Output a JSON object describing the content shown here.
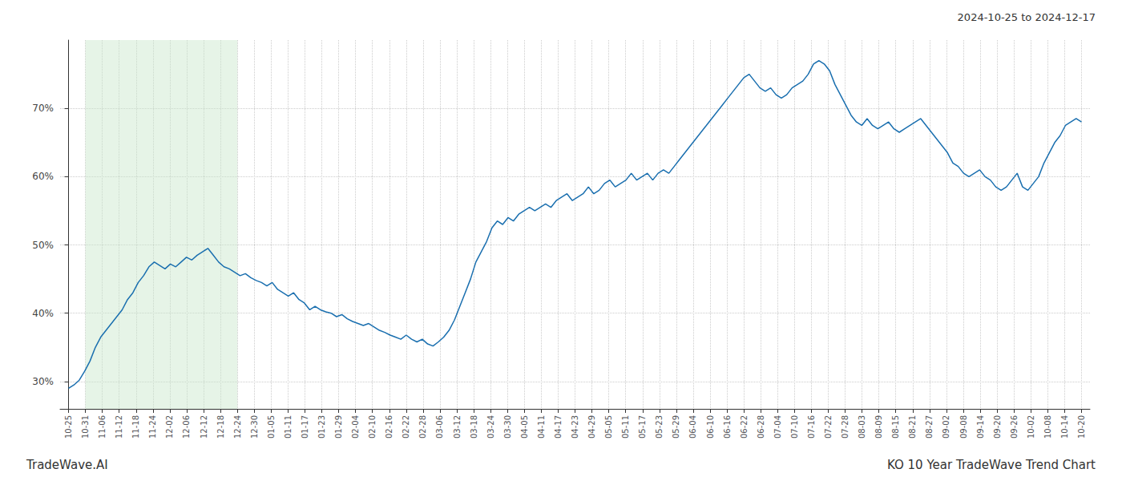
{
  "chart_data": {
    "type": "line",
    "title": "KO 10 Year TradeWave Trend Chart",
    "subtitle": "2024-10-25 to 2024-12-17",
    "annotations": [
      "TradeWave.AI"
    ],
    "color": "#1a6faf",
    "grid": true,
    "shaded_span": {
      "from": 1,
      "to": 10,
      "color": "#c8e6c9"
    },
    "xlim": [
      -0.5,
      60.5
    ],
    "xticks": [
      {
        "value": 0,
        "label": "10-25"
      },
      {
        "value": 1,
        "label": "10-31"
      },
      {
        "value": 2,
        "label": "11-06"
      },
      {
        "value": 3,
        "label": "11-12"
      },
      {
        "value": 4,
        "label": "11-18"
      },
      {
        "value": 5,
        "label": "11-24"
      },
      {
        "value": 6,
        "label": "12-02"
      },
      {
        "value": 7,
        "label": "12-06"
      },
      {
        "value": 8,
        "label": "12-12"
      },
      {
        "value": 9,
        "label": "12-18"
      },
      {
        "value": 10,
        "label": "12-24"
      },
      {
        "value": 11,
        "label": "12-30"
      },
      {
        "value": 12,
        "label": "01-05"
      },
      {
        "value": 13,
        "label": "01-11"
      },
      {
        "value": 14,
        "label": "01-17"
      },
      {
        "value": 15,
        "label": "01-23"
      },
      {
        "value": 16,
        "label": "01-29"
      },
      {
        "value": 17,
        "label": "02-04"
      },
      {
        "value": 18,
        "label": "02-10"
      },
      {
        "value": 19,
        "label": "02-16"
      },
      {
        "value": 20,
        "label": "02-22"
      },
      {
        "value": 21,
        "label": "02-28"
      },
      {
        "value": 22,
        "label": "03-06"
      },
      {
        "value": 23,
        "label": "03-12"
      },
      {
        "value": 24,
        "label": "03-18"
      },
      {
        "value": 25,
        "label": "03-24"
      },
      {
        "value": 26,
        "label": "03-30"
      },
      {
        "value": 27,
        "label": "04-05"
      },
      {
        "value": 28,
        "label": "04-11"
      },
      {
        "value": 29,
        "label": "04-17"
      },
      {
        "value": 30,
        "label": "04-23"
      },
      {
        "value": 31,
        "label": "04-29"
      },
      {
        "value": 32,
        "label": "05-05"
      },
      {
        "value": 33,
        "label": "05-11"
      },
      {
        "value": 34,
        "label": "05-17"
      },
      {
        "value": 35,
        "label": "05-23"
      },
      {
        "value": 36,
        "label": "05-29"
      },
      {
        "value": 37,
        "label": "06-04"
      },
      {
        "value": 38,
        "label": "06-10"
      },
      {
        "value": 39,
        "label": "06-16"
      },
      {
        "value": 40,
        "label": "06-22"
      },
      {
        "value": 41,
        "label": "06-28"
      },
      {
        "value": 42,
        "label": "07-04"
      },
      {
        "value": 43,
        "label": "07-10"
      },
      {
        "value": 44,
        "label": "07-16"
      },
      {
        "value": 45,
        "label": "07-22"
      },
      {
        "value": 46,
        "label": "07-28"
      },
      {
        "value": 47,
        "label": "08-03"
      },
      {
        "value": 48,
        "label": "08-09"
      },
      {
        "value": 49,
        "label": "08-15"
      },
      {
        "value": 50,
        "label": "08-21"
      },
      {
        "value": 51,
        "label": "08-27"
      },
      {
        "value": 52,
        "label": "09-02"
      },
      {
        "value": 53,
        "label": "09-08"
      },
      {
        "value": 54,
        "label": "09-14"
      },
      {
        "value": 55,
        "label": "09-20"
      },
      {
        "value": 56,
        "label": "09-26"
      },
      {
        "value": 57,
        "label": "10-02"
      },
      {
        "value": 58,
        "label": "10-08"
      },
      {
        "value": 59,
        "label": "10-14"
      },
      {
        "value": 60,
        "label": "10-20"
      }
    ],
    "ylim": [
      26,
      80
    ],
    "yticks": [
      {
        "value": 30,
        "label": "30%"
      },
      {
        "value": 40,
        "label": "40%"
      },
      {
        "value": 50,
        "label": "50%"
      },
      {
        "value": 60,
        "label": "60%"
      },
      {
        "value": 70,
        "label": "70%"
      }
    ],
    "x": [
      0,
      0.3175,
      0.6349,
      0.9524,
      1.2698,
      1.5873,
      1.9048,
      2.2222,
      2.5397,
      2.8571,
      3.1746,
      3.4921,
      3.8095,
      4.127,
      4.4444,
      4.7619,
      5.0794,
      5.3968,
      5.7143,
      6.0317,
      6.3492,
      6.6667,
      6.9841,
      7.3016,
      7.619,
      7.9365,
      8.254,
      8.5714,
      8.8889,
      9.2063,
      9.5238,
      9.8413,
      10.1587,
      10.4762,
      10.7937,
      11.1111,
      11.4286,
      11.746,
      12.0635,
      12.381,
      12.6984,
      13.0159,
      13.3333,
      13.6508,
      13.9683,
      14.2857,
      14.6032,
      14.9206,
      15.2381,
      15.5556,
      15.873,
      16.1905,
      16.5079,
      16.8254,
      17.1429,
      17.4603,
      17.7778,
      18.0952,
      18.4127,
      18.7302,
      19.0476,
      19.3651,
      19.6825,
      20,
      20.3175,
      20.6349,
      20.9524,
      21.2698,
      21.5873,
      21.9048,
      22.2222,
      22.5397,
      22.8571,
      23.1746,
      23.4921,
      23.8095,
      24.127,
      24.4444,
      24.7619,
      25.0794,
      25.3968,
      25.7143,
      26.0317,
      26.3492,
      26.6667,
      26.9841,
      27.3016,
      27.619,
      27.9365,
      28.254,
      28.5714,
      28.8889,
      29.2063,
      29.5238,
      29.8413,
      30.1587,
      30.4762,
      30.7937,
      31.1111,
      31.4286,
      31.746,
      32.0635,
      32.381,
      32.6984,
      33.0159,
      33.3333,
      33.6508,
      33.9683,
      34.2857,
      34.6032,
      34.9206,
      35.2381,
      35.5556,
      35.873,
      36.1905,
      36.5079,
      36.8254,
      37.1429,
      37.4603,
      37.7778,
      38.0952,
      38.4127,
      38.7302,
      39.0476,
      39.3651,
      39.6825,
      40,
      40.3175,
      40.6349,
      40.9524,
      41.2698,
      41.5873,
      41.9048,
      42.2222,
      42.5397,
      42.8571,
      43.1746,
      43.4921,
      43.8095,
      44.127,
      44.4444,
      44.7619,
      45.0794,
      45.3968,
      45.7143,
      46.0317,
      46.3492,
      46.6667,
      46.9841,
      47.3016,
      47.619,
      47.9365,
      48.254,
      48.5714,
      48.8889,
      49.2063,
      49.5238,
      49.8413,
      50.1587,
      50.4762,
      50.7937,
      51.1111,
      51.4286,
      51.746,
      52.0635,
      52.381,
      52.6984,
      53.0159,
      53.3333,
      53.6508,
      53.9683,
      54.2857,
      54.6032,
      54.9206,
      55.2381,
      55.5556,
      55.873,
      56.1905,
      56.5079,
      56.8254,
      57.1429,
      57.4603,
      57.7778,
      58.0952,
      58.4127,
      58.7302,
      59.0476,
      59.3651,
      59.6825,
      60
    ],
    "values": [
      29.0,
      29.5,
      30.2,
      31.5,
      33.0,
      35.0,
      36.5,
      37.5,
      38.5,
      39.5,
      40.5,
      42.0,
      43.0,
      44.5,
      45.5,
      46.8,
      47.5,
      47.0,
      46.5,
      47.2,
      46.8,
      47.5,
      48.2,
      47.8,
      48.5,
      49.0,
      49.5,
      48.5,
      47.5,
      46.8,
      46.5,
      46.0,
      45.5,
      45.8,
      45.2,
      44.8,
      44.5,
      44.0,
      44.5,
      43.5,
      43.0,
      42.5,
      43.0,
      42.0,
      41.5,
      40.5,
      41.0,
      40.5,
      40.2,
      40.0,
      39.5,
      39.8,
      39.2,
      38.8,
      38.5,
      38.2,
      38.5,
      38.0,
      37.5,
      37.2,
      36.8,
      36.5,
      36.2,
      36.8,
      36.2,
      35.8,
      36.2,
      35.5,
      35.2,
      35.8,
      36.5,
      37.5,
      39.0,
      41.0,
      43.0,
      45.0,
      47.5,
      49.0,
      50.5,
      52.5,
      53.5,
      53.0,
      54.0,
      53.5,
      54.5,
      55.0,
      55.5,
      55.0,
      55.5,
      56.0,
      55.5,
      56.5,
      57.0,
      57.5,
      56.5,
      57.0,
      57.5,
      58.5,
      57.5,
      58.0,
      59.0,
      59.5,
      58.5,
      59.0,
      59.5,
      60.5,
      59.5,
      60.0,
      60.5,
      59.5,
      60.5,
      61.0,
      60.5,
      61.5,
      62.5,
      63.5,
      64.5,
      65.5,
      66.5,
      67.5,
      68.5,
      69.5,
      70.5,
      71.5,
      72.5,
      73.5,
      74.5,
      75.0,
      74.0,
      73.0,
      72.5,
      73.0,
      72.0,
      71.5,
      72.0,
      73.0,
      73.5,
      74.0,
      75.0,
      76.5,
      77.0,
      76.5,
      75.5,
      73.5,
      72.0,
      70.5,
      69.0,
      68.0,
      67.5,
      68.5,
      67.5,
      67.0,
      67.5,
      68.0,
      67.0,
      66.5,
      67.0,
      67.5,
      68.0,
      68.5,
      67.5,
      66.5,
      65.5,
      64.5,
      63.5,
      62.0,
      61.5,
      60.5,
      60.0,
      60.5,
      61.0,
      60.0,
      59.5,
      58.5,
      58.0,
      58.5,
      59.5,
      60.5,
      58.5,
      58.0,
      59.0,
      60.0,
      62.0,
      63.5,
      65.0,
      66.0,
      67.5,
      68.0,
      68.5,
      68.0
    ]
  }
}
